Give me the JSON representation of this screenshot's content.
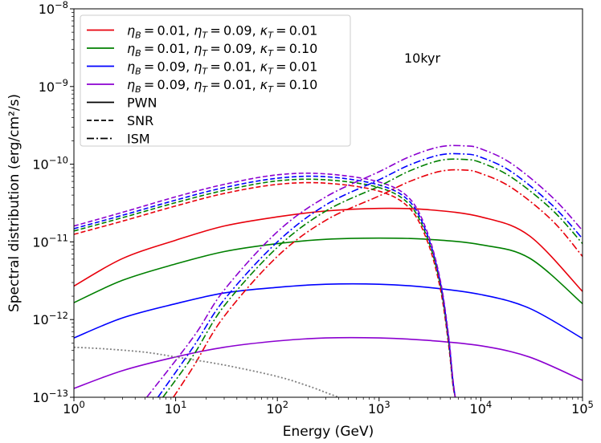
{
  "chart_data": {
    "type": "line",
    "xscale": "log",
    "yscale": "log",
    "xlim": [
      1,
      100000
    ],
    "ylim": [
      1e-13,
      1e-08
    ],
    "xlabel": "Energy (GeV)",
    "ylabel": "Spectral distribution (erg/cm²/s)",
    "annotation": "10kyr",
    "legend_position": "top-left",
    "x_ticks": [
      {
        "value": 1,
        "base": "10",
        "exp": "0"
      },
      {
        "value": 10,
        "base": "10",
        "exp": "1"
      },
      {
        "value": 100,
        "base": "10",
        "exp": "2"
      },
      {
        "value": 1000,
        "base": "10",
        "exp": "3"
      },
      {
        "value": 10000,
        "base": "10",
        "exp": "4"
      },
      {
        "value": 100000,
        "base": "10",
        "exp": "5"
      }
    ],
    "y_ticks": [
      {
        "value": 1e-13,
        "base": "10",
        "exp": "−13"
      },
      {
        "value": 1e-12,
        "base": "10",
        "exp": "−12"
      },
      {
        "value": 1e-11,
        "base": "10",
        "exp": "−11"
      },
      {
        "value": 1e-10,
        "base": "10",
        "exp": "−10"
      },
      {
        "value": 1e-09,
        "base": "10",
        "exp": "−9"
      },
      {
        "value": 1e-08,
        "base": "10",
        "exp": "−8"
      }
    ],
    "legend": [
      {
        "type": "param",
        "color": "#e8000b",
        "eta_B": "0.01",
        "eta_T": "0.09",
        "kappa_T": "0.01"
      },
      {
        "type": "param",
        "color": "#008000",
        "eta_B": "0.01",
        "eta_T": "0.09",
        "kappa_T": "0.10"
      },
      {
        "type": "param",
        "color": "#0000ff",
        "eta_B": "0.09",
        "eta_T": "0.01",
        "kappa_T": "0.01"
      },
      {
        "type": "param",
        "color": "#8b00d0",
        "eta_B": "0.09",
        "eta_T": "0.01",
        "kappa_T": "0.10"
      },
      {
        "type": "style",
        "color": "#000000",
        "dash": "solid",
        "label": "PWN"
      },
      {
        "type": "style",
        "color": "#000000",
        "dash": "dashed",
        "label": "SNR"
      },
      {
        "type": "style",
        "color": "#000000",
        "dash": "dashdot",
        "label": "ISM"
      }
    ],
    "series": [
      {
        "name": "PWN ηB=0.01 ηT=0.09 κT=0.01",
        "color": "#e8000b",
        "dash": "solid",
        "x": [
          1,
          3,
          10,
          30,
          100,
          300,
          1000,
          3000,
          10000,
          30000,
          100000
        ],
        "y": [
          2.7e-12,
          6.1e-12,
          1.05e-11,
          1.6e-11,
          2.1e-11,
          2.5e-11,
          2.7e-11,
          2.6e-11,
          2.1e-11,
          1.2e-11,
          2.3e-12
        ]
      },
      {
        "name": "PWN ηB=0.01 ηT=0.09 κT=0.10",
        "color": "#008000",
        "dash": "solid",
        "x": [
          1,
          3,
          10,
          30,
          100,
          300,
          1000,
          3000,
          10000,
          30000,
          100000
        ],
        "y": [
          1.65e-12,
          3.2e-12,
          5.2e-12,
          7.5e-12,
          9.5e-12,
          1.08e-11,
          1.12e-11,
          1.08e-11,
          9.2e-12,
          6.2e-12,
          1.6e-12
        ]
      },
      {
        "name": "PWN ηB=0.09 ηT=0.01 κT=0.01",
        "color": "#0000ff",
        "dash": "solid",
        "x": [
          1,
          3,
          10,
          30,
          100,
          300,
          1000,
          3000,
          10000,
          30000,
          100000
        ],
        "y": [
          5.8e-13,
          1.05e-12,
          1.6e-12,
          2.2e-12,
          2.6e-12,
          2.85e-12,
          2.85e-12,
          2.6e-12,
          2.1e-12,
          1.4e-12,
          5.7e-13
        ]
      },
      {
        "name": "PWN ηB=0.09 ηT=0.01 κT=0.10",
        "color": "#8b00d0",
        "dash": "solid",
        "x": [
          1,
          3,
          10,
          30,
          100,
          300,
          1000,
          3000,
          10000,
          30000,
          100000
        ],
        "y": [
          1.3e-13,
          2.2e-13,
          3.3e-13,
          4.4e-13,
          5.3e-13,
          5.8e-13,
          5.8e-13,
          5.4e-13,
          4.6e-13,
          3.3e-13,
          1.65e-13
        ]
      },
      {
        "name": "SNR ηB=0.01 ηT=0.09 κT=0.01",
        "color": "#e8000b",
        "dash": "dashed",
        "x": [
          1,
          3,
          10,
          30,
          100,
          300,
          1000,
          2000,
          3000,
          4000,
          4800,
          5300,
          5600
        ],
        "y": [
          1.25e-11,
          1.85e-11,
          2.9e-11,
          4.2e-11,
          5.5e-11,
          5.7e-11,
          4.5e-11,
          2.7e-11,
          1e-11,
          2.5e-12,
          5e-13,
          1.5e-13,
          1e-13
        ]
      },
      {
        "name": "SNR ηB=0.01 ηT=0.09 κT=0.10",
        "color": "#008000",
        "dash": "dashed",
        "x": [
          1,
          3,
          10,
          30,
          100,
          300,
          1000,
          2000,
          3000,
          4000,
          4800,
          5300,
          5600
        ],
        "y": [
          1.38e-11,
          2.05e-11,
          3.2e-11,
          4.6e-11,
          6.1e-11,
          6.3e-11,
          5e-11,
          3e-11,
          1.1e-11,
          2.8e-12,
          5.5e-13,
          1.6e-13,
          1e-13
        ]
      },
      {
        "name": "SNR ηB=0.09 ηT=0.01 κT=0.01",
        "color": "#0000ff",
        "dash": "dashed",
        "x": [
          1,
          3,
          10,
          30,
          100,
          300,
          1000,
          2000,
          3000,
          4000,
          4800,
          5300,
          5600
        ],
        "y": [
          1.48e-11,
          2.2e-11,
          3.45e-11,
          5e-11,
          6.6e-11,
          6.9e-11,
          5.4e-11,
          3.3e-11,
          1.2e-11,
          3e-12,
          6e-13,
          1.7e-13,
          1e-13
        ]
      },
      {
        "name": "SNR ηB=0.09 ηT=0.01 κT=0.10",
        "color": "#8b00d0",
        "dash": "dashed",
        "x": [
          1,
          3,
          10,
          30,
          100,
          300,
          1000,
          2000,
          3000,
          4000,
          4800,
          5300,
          5600
        ],
        "y": [
          1.6e-11,
          2.4e-11,
          3.8e-11,
          5.5e-11,
          7.3e-11,
          7.5e-11,
          5.9e-11,
          3.6e-11,
          1.3e-11,
          3.2e-12,
          6.5e-13,
          1.8e-13,
          1e-13
        ]
      },
      {
        "name": "ISM ηB=0.01 ηT=0.09 κT=0.01",
        "color": "#e8000b",
        "dash": "dashdot",
        "x": [
          9.5,
          15,
          30,
          100,
          300,
          1000,
          2000,
          4000,
          7000,
          10000,
          20000,
          50000,
          100000
        ],
        "y": [
          1e-13,
          2.5e-13,
          1.1e-12,
          6.5e-12,
          1.9e-11,
          3.9e-11,
          6e-11,
          8.1e-11,
          8.4e-11,
          7.6e-11,
          5e-11,
          1.9e-11,
          6.5e-12
        ]
      },
      {
        "name": "ISM ηB=0.01 ηT=0.09 κT=0.10",
        "color": "#008000",
        "dash": "dashdot",
        "x": [
          7.5,
          15,
          30,
          100,
          300,
          1000,
          2000,
          4000,
          7000,
          10000,
          20000,
          50000,
          100000
        ],
        "y": [
          1e-13,
          3.5e-13,
          1.5e-12,
          8.5e-12,
          2.5e-11,
          5.2e-11,
          8.2e-11,
          1.12e-10,
          1.15e-10,
          1.05e-10,
          6.8e-11,
          2.6e-11,
          9.5e-12
        ]
      },
      {
        "name": "ISM ηB=0.09 ηT=0.01 κT=0.01",
        "color": "#0000ff",
        "dash": "dashdot",
        "x": [
          6.7,
          15,
          30,
          100,
          300,
          1000,
          2000,
          4000,
          7000,
          10000,
          20000,
          50000,
          100000
        ],
        "y": [
          1e-13,
          4.5e-13,
          1.8e-12,
          1e-11,
          3e-11,
          6.3e-11,
          9.8e-11,
          1.32e-10,
          1.35e-10,
          1.23e-10,
          8e-11,
          3e-11,
          1.1e-11
        ]
      },
      {
        "name": "ISM ηB=0.09 ηT=0.01 κT=0.10",
        "color": "#8b00d0",
        "dash": "dashdot",
        "x": [
          5.2,
          15,
          30,
          100,
          300,
          1000,
          2000,
          4000,
          7000,
          10000,
          20000,
          50000,
          100000
        ],
        "y": [
          1e-13,
          6e-13,
          2.4e-12,
          1.35e-11,
          3.8e-11,
          8e-11,
          1.25e-10,
          1.68e-10,
          1.72e-10,
          1.58e-10,
          1.02e-10,
          3.8e-11,
          1.4e-11
        ]
      },
      {
        "name": "dotted reference",
        "color": "#808080",
        "dash": "dotted",
        "x": [
          1,
          2,
          5,
          10,
          30,
          100,
          200,
          300,
          400
        ],
        "y": [
          4.4e-13,
          4.2e-13,
          3.8e-13,
          3.3e-13,
          2.6e-13,
          1.85e-13,
          1.4e-13,
          1.15e-13,
          1e-13
        ]
      }
    ]
  }
}
